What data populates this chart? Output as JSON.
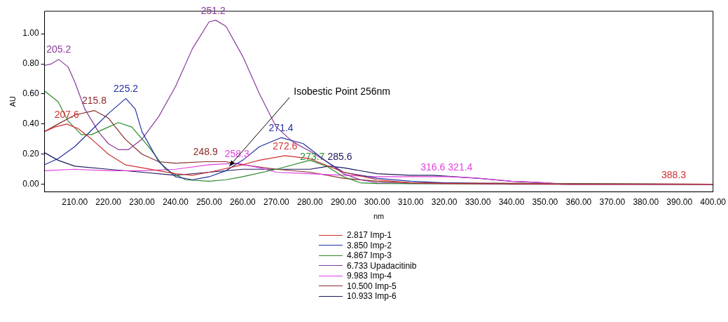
{
  "chart_data": {
    "type": "line",
    "xlabel": "nm",
    "ylabel": "AU",
    "xlim": [
      201,
      400
    ],
    "ylim": [
      -0.05,
      1.15
    ],
    "xticks": [
      {
        "value": 210,
        "label": "210.00"
      },
      {
        "value": 220,
        "label": "220.00"
      },
      {
        "value": 230,
        "label": "230.00"
      },
      {
        "value": 240,
        "label": "240.00"
      },
      {
        "value": 250,
        "label": "250.00"
      },
      {
        "value": 260,
        "label": "260.00"
      },
      {
        "value": 270,
        "label": "270.00"
      },
      {
        "value": 280,
        "label": "280.00"
      },
      {
        "value": 290,
        "label": "290.00"
      },
      {
        "value": 300,
        "label": "300.00"
      },
      {
        "value": 310,
        "label": "310.00"
      },
      {
        "value": 320,
        "label": "320.00"
      },
      {
        "value": 330,
        "label": "330.00"
      },
      {
        "value": 340,
        "label": "340.00"
      },
      {
        "value": 350,
        "label": "350.00"
      },
      {
        "value": 360,
        "label": "360.00"
      },
      {
        "value": 370,
        "label": "370.00"
      },
      {
        "value": 380,
        "label": "380.00"
      },
      {
        "value": 390,
        "label": "390.00"
      },
      {
        "value": 400,
        "label": "400.00"
      }
    ],
    "yticks": [
      {
        "value": 0,
        "label": "0.00"
      },
      {
        "value": 0.2,
        "label": "0.20"
      },
      {
        "value": 0.4,
        "label": "0.40"
      },
      {
        "value": 0.6,
        "label": "0.60"
      },
      {
        "value": 0.8,
        "label": "0.80"
      },
      {
        "value": 1,
        "label": "1.00"
      }
    ],
    "grid": false,
    "legend": "bottom",
    "marker": "none",
    "line_style": "solid",
    "series": [
      {
        "name": "2.817 Imp-1",
        "color": "#d03030",
        "x": [
          201,
          204,
          207.6,
          211,
          215,
          220,
          225,
          230,
          240,
          245,
          250,
          260,
          265,
          272.6,
          280,
          290,
          300,
          310,
          320,
          360,
          400
        ],
        "values": [
          0.35,
          0.38,
          0.4,
          0.37,
          0.3,
          0.2,
          0.13,
          0.11,
          0.07,
          0.06,
          0.08,
          0.13,
          0.16,
          0.19,
          0.17,
          0.08,
          0.03,
          0.01,
          0.005,
          0,
          0
        ]
      },
      {
        "name": "3.850 Imp-2",
        "color": "#2030a0",
        "x": [
          201,
          205,
          210,
          215,
          220,
          225.2,
          228,
          230,
          235,
          240,
          245,
          250,
          255,
          260,
          265,
          271.4,
          278,
          285,
          290,
          300,
          310,
          320,
          340,
          400
        ],
        "values": [
          0.13,
          0.17,
          0.25,
          0.36,
          0.47,
          0.57,
          0.5,
          0.35,
          0.15,
          0.05,
          0.03,
          0.05,
          0.09,
          0.16,
          0.25,
          0.31,
          0.27,
          0.15,
          0.08,
          0.04,
          0.02,
          0.01,
          0,
          0
        ]
      },
      {
        "name": "4.867 Imp-3",
        "color": "#2a8a2a",
        "x": [
          201,
          205,
          208,
          212,
          215,
          220,
          223,
          227,
          232,
          237,
          243,
          250,
          255,
          260,
          270,
          280,
          285,
          290,
          295,
          300,
          400
        ],
        "values": [
          0.62,
          0.55,
          0.42,
          0.33,
          0.33,
          0.38,
          0.41,
          0.38,
          0.25,
          0.1,
          0.03,
          0.02,
          0.03,
          0.05,
          0.1,
          0.16,
          0.12,
          0.05,
          0.01,
          0.005,
          0
        ]
      },
      {
        "name": "6.733 Upadacitinib",
        "color": "#8a3a9a",
        "x": [
          201,
          203,
          205.2,
          208,
          210,
          213,
          217,
          220,
          223,
          226,
          230,
          235,
          240,
          245,
          250,
          252,
          255,
          260,
          265,
          270,
          275,
          280,
          285,
          290,
          295,
          300,
          310,
          400
        ],
        "values": [
          0.79,
          0.8,
          0.83,
          0.78,
          0.68,
          0.5,
          0.35,
          0.27,
          0.23,
          0.23,
          0.3,
          0.45,
          0.65,
          0.9,
          1.08,
          1.09,
          1.05,
          0.85,
          0.6,
          0.38,
          0.28,
          0.22,
          0.15,
          0.07,
          0.03,
          0.01,
          0.005,
          0
        ]
      },
      {
        "name": "9.983 Imp-4",
        "color": "#e040e0",
        "x": [
          201,
          210,
          220,
          230,
          240,
          250,
          258.3,
          265,
          270,
          280,
          290,
          300,
          310,
          321.4,
          330,
          340,
          350,
          357,
          400
        ],
        "values": [
          0.09,
          0.1,
          0.09,
          0.09,
          0.1,
          0.13,
          0.14,
          0.11,
          0.08,
          0.07,
          0.06,
          0.05,
          0.05,
          0.05,
          0.04,
          0.02,
          0.01,
          0,
          0
        ]
      },
      {
        "name": "10.500 Imp-5",
        "color": "#8a2a2a",
        "x": [
          201,
          205,
          210,
          215.8,
          220,
          225,
          230,
          235,
          240,
          248.9,
          255,
          260,
          270,
          280,
          290,
          300,
          310,
          400
        ],
        "values": [
          0.35,
          0.4,
          0.46,
          0.49,
          0.44,
          0.3,
          0.2,
          0.15,
          0.14,
          0.15,
          0.15,
          0.13,
          0.1,
          0.08,
          0.04,
          0.02,
          0.01,
          0
        ]
      },
      {
        "name": "10.933 Imp-6",
        "color": "#1a1a60",
        "x": [
          201,
          205,
          210,
          220,
          230,
          240,
          250,
          260,
          270,
          280,
          285.6,
          290,
          300,
          310,
          316.6,
          330,
          340,
          350,
          355,
          400
        ],
        "values": [
          0.21,
          0.16,
          0.12,
          0.1,
          0.08,
          0.06,
          0.08,
          0.1,
          0.1,
          0.1,
          0.12,
          0.11,
          0.07,
          0.06,
          0.06,
          0.04,
          0.02,
          0.01,
          0,
          0
        ]
      }
    ],
    "annotations": [
      {
        "text": "205.2",
        "x": 205.2,
        "y": 0.83
      },
      {
        "text": "207.6",
        "x": 207.6,
        "y": 0.4
      },
      {
        "text": "215.8",
        "x": 215.8,
        "y": 0.49
      },
      {
        "text": "225.2",
        "x": 225.2,
        "y": 0.57
      },
      {
        "text": "251.2",
        "x": 251.2,
        "y": 1.09
      },
      {
        "text": "248.9",
        "x": 248.9,
        "y": 0.15
      },
      {
        "text": "258.3",
        "x": 258.3,
        "y": 0.14
      },
      {
        "text": "271.4",
        "x": 271.4,
        "y": 0.31
      },
      {
        "text": "272.6",
        "x": 272.6,
        "y": 0.19
      },
      {
        "text": "273.7",
        "x": 273.7,
        "y": 0.12
      },
      {
        "text": "285.6",
        "x": 285.6,
        "y": 0.12
      },
      {
        "text": "316.6",
        "x": 316.6,
        "y": 0.05
      },
      {
        "text": "321.4",
        "x": 321.4,
        "y": 0.05
      },
      {
        "text": "388.3",
        "x": 388.3,
        "y": 0
      },
      {
        "text": "Isobestic Point 256nm",
        "x": 256,
        "y": 0.12
      }
    ]
  }
}
